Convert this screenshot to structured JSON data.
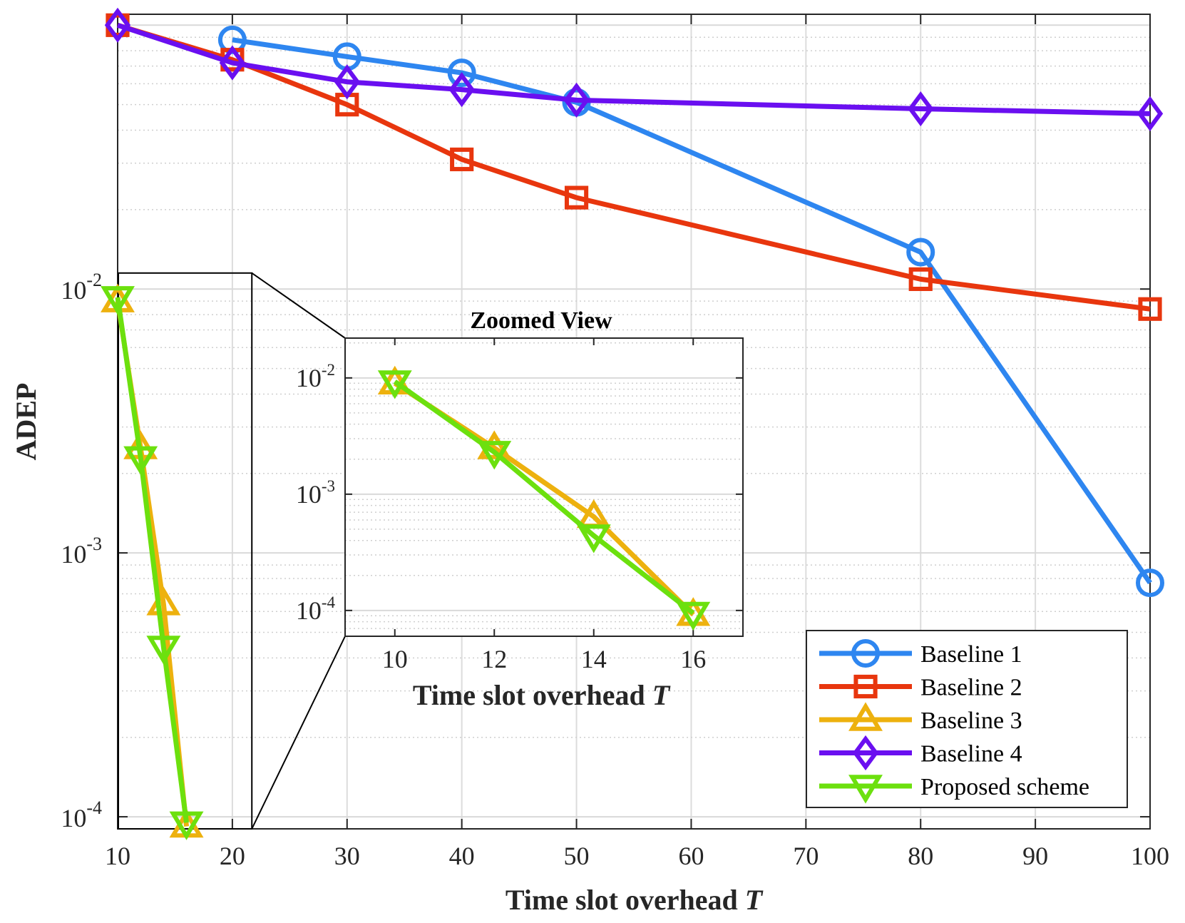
{
  "chart_data": {
    "type": "line",
    "title": "",
    "xlabel": "Time slot overhead",
    "xlabel_var": "T",
    "ylabel": "ADEP",
    "yscale": "log",
    "xlim": [
      10,
      100
    ],
    "ylim": [
      9e-05,
      0.11
    ],
    "xticks": [
      10,
      20,
      30,
      40,
      50,
      60,
      70,
      80,
      90,
      100
    ],
    "yticks": [
      0.0001,
      0.001,
      0.01
    ],
    "ytick_exponents": [
      "-4",
      "-3",
      "-2"
    ],
    "grid": true,
    "legend_position": "bottom-right",
    "series": [
      {
        "name": "Baseline 1",
        "color": "#2E86F0",
        "marker": "circle",
        "x": [
          20,
          30,
          40,
          50,
          80,
          100
        ],
        "y": [
          0.088,
          0.076,
          0.066,
          0.051,
          0.0138,
          0.00077
        ]
      },
      {
        "name": "Baseline 2",
        "color": "#E8360E",
        "marker": "square",
        "x": [
          10,
          20,
          30,
          40,
          50,
          80,
          100
        ],
        "y": [
          0.1,
          0.074,
          0.05,
          0.031,
          0.0222,
          0.0109,
          0.0084
        ]
      },
      {
        "name": "Baseline 3",
        "color": "#EDB10E",
        "marker": "triangle-up",
        "x": [
          10,
          12,
          14,
          16
        ],
        "y": [
          0.009,
          0.0025,
          0.00064,
          9.2e-05
        ]
      },
      {
        "name": "Baseline 4",
        "color": "#6A0FF0",
        "marker": "diamond",
        "x": [
          10,
          20,
          30,
          40,
          50,
          80,
          100
        ],
        "y": [
          0.1,
          0.072,
          0.061,
          0.057,
          0.052,
          0.0482,
          0.0462
        ]
      },
      {
        "name": "Proposed scheme",
        "color": "#6CE00E",
        "marker": "triangle-down",
        "x": [
          10,
          12,
          14,
          16
        ],
        "y": [
          0.0093,
          0.0023,
          0.00044,
          9.5e-05
        ]
      }
    ],
    "inset": {
      "title": "Zoomed View",
      "xlabel": "Time slot overhead",
      "xlabel_var": "T",
      "xlim": [
        9,
        17
      ],
      "ylim": [
        6e-05,
        0.022
      ],
      "xticks": [
        10,
        12,
        14,
        16
      ],
      "yticks": [
        0.0001,
        0.001,
        0.01
      ],
      "ytick_exponents": [
        "-4",
        "-3",
        "-2"
      ],
      "series_names": [
        "Baseline 3",
        "Proposed scheme"
      ]
    },
    "zoom_box": {
      "xlim": [
        10,
        21.7
      ],
      "ylim": [
        9e-05,
        0.0115
      ]
    }
  }
}
